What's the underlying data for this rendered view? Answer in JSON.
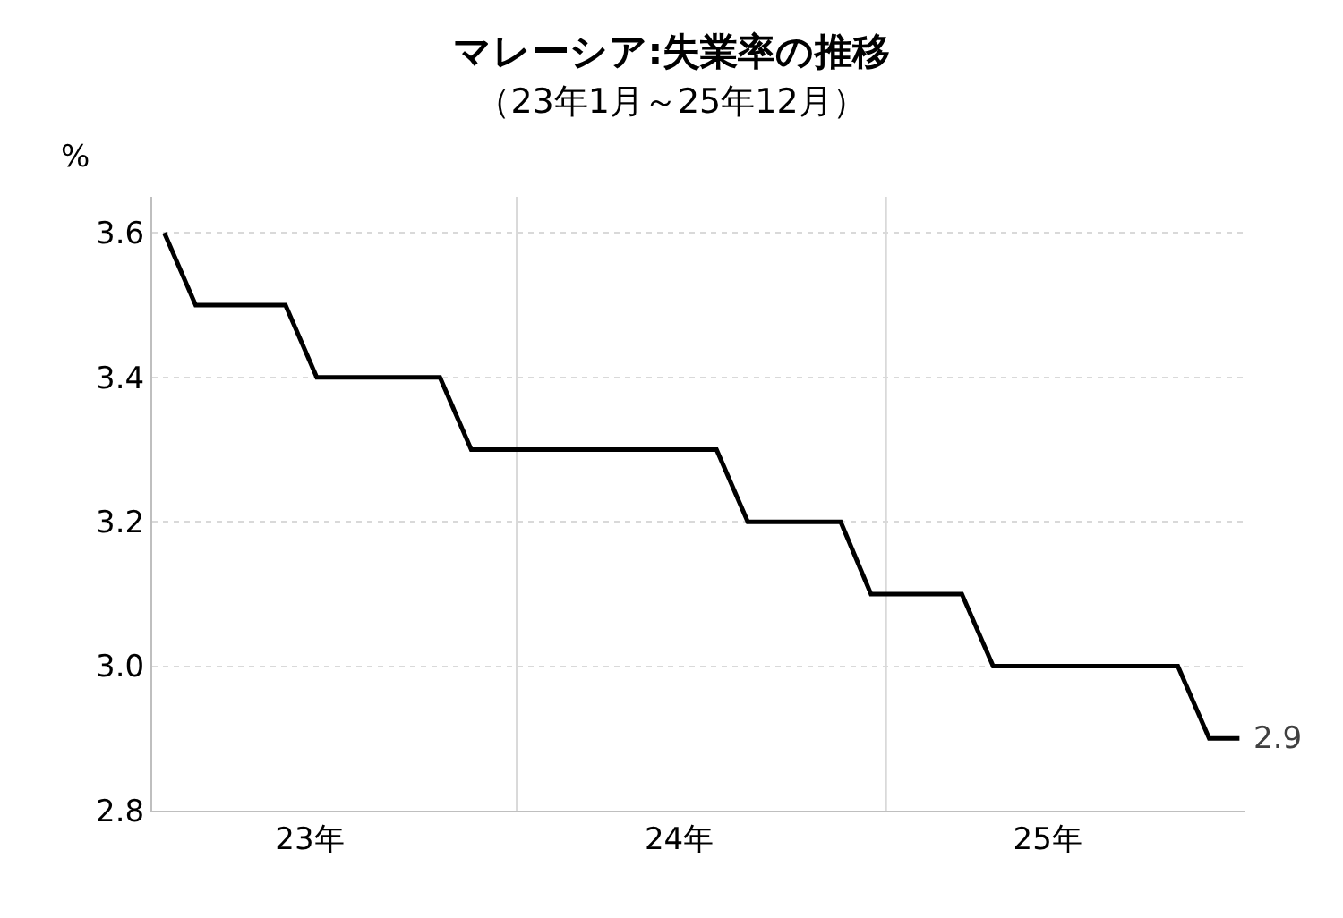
{
  "chart_data": {
    "type": "line",
    "title": "マレーシア:失業率の推移",
    "subtitle": "（23年1月～25年12月）",
    "ylabel": "%",
    "x": [
      "2023-01",
      "2023-02",
      "2023-03",
      "2023-04",
      "2023-05",
      "2023-06",
      "2023-07",
      "2023-08",
      "2023-09",
      "2023-10",
      "2023-11",
      "2023-12",
      "2024-01",
      "2024-02",
      "2024-03",
      "2024-04",
      "2024-05",
      "2024-06",
      "2024-07",
      "2024-08",
      "2024-09",
      "2024-10",
      "2024-11",
      "2024-12",
      "2025-01",
      "2025-02",
      "2025-03",
      "2025-04",
      "2025-05",
      "2025-06",
      "2025-07",
      "2025-08",
      "2025-09",
      "2025-10",
      "2025-11",
      "2025-12"
    ],
    "series": [
      {
        "color": "#000000",
        "values": [
          3.6,
          3.5,
          3.5,
          3.5,
          3.5,
          3.4,
          3.4,
          3.4,
          3.4,
          3.4,
          3.3,
          3.3,
          3.3,
          3.3,
          3.3,
          3.3,
          3.3,
          3.3,
          3.3,
          3.2,
          3.2,
          3.2,
          3.2,
          3.1,
          3.1,
          3.1,
          3.1,
          3.0,
          3.0,
          3.0,
          3.0,
          3.0,
          3.0,
          3.0,
          2.9,
          2.9
        ]
      }
    ],
    "xlim": [
      "2022-12-20",
      "2025-12-06"
    ],
    "xticks": [
      {
        "value": "2023-05-25",
        "label": "23年"
      },
      {
        "value": "2024-05-25",
        "label": "24年"
      },
      {
        "value": "2025-05-25",
        "label": "25年"
      }
    ],
    "ylim": [
      2.8,
      3.65
    ],
    "yticks": [
      2.8,
      {
        "value": 3,
        "label": "3.0"
      },
      3.2,
      3.4,
      3.6
    ],
    "ref_lines": [
      {
        "axis": "x",
        "value": "2023-12-16",
        "color": "#d9d9d9"
      },
      {
        "axis": "x",
        "value": "2024-12-16",
        "color": "#d9d9d9"
      }
    ],
    "annotations": [
      {
        "text": "2.9",
        "x": "2025-12",
        "y": 2.9
      }
    ],
    "grid": "y",
    "legend": false,
    "marker": "none",
    "line_style": "solid"
  }
}
